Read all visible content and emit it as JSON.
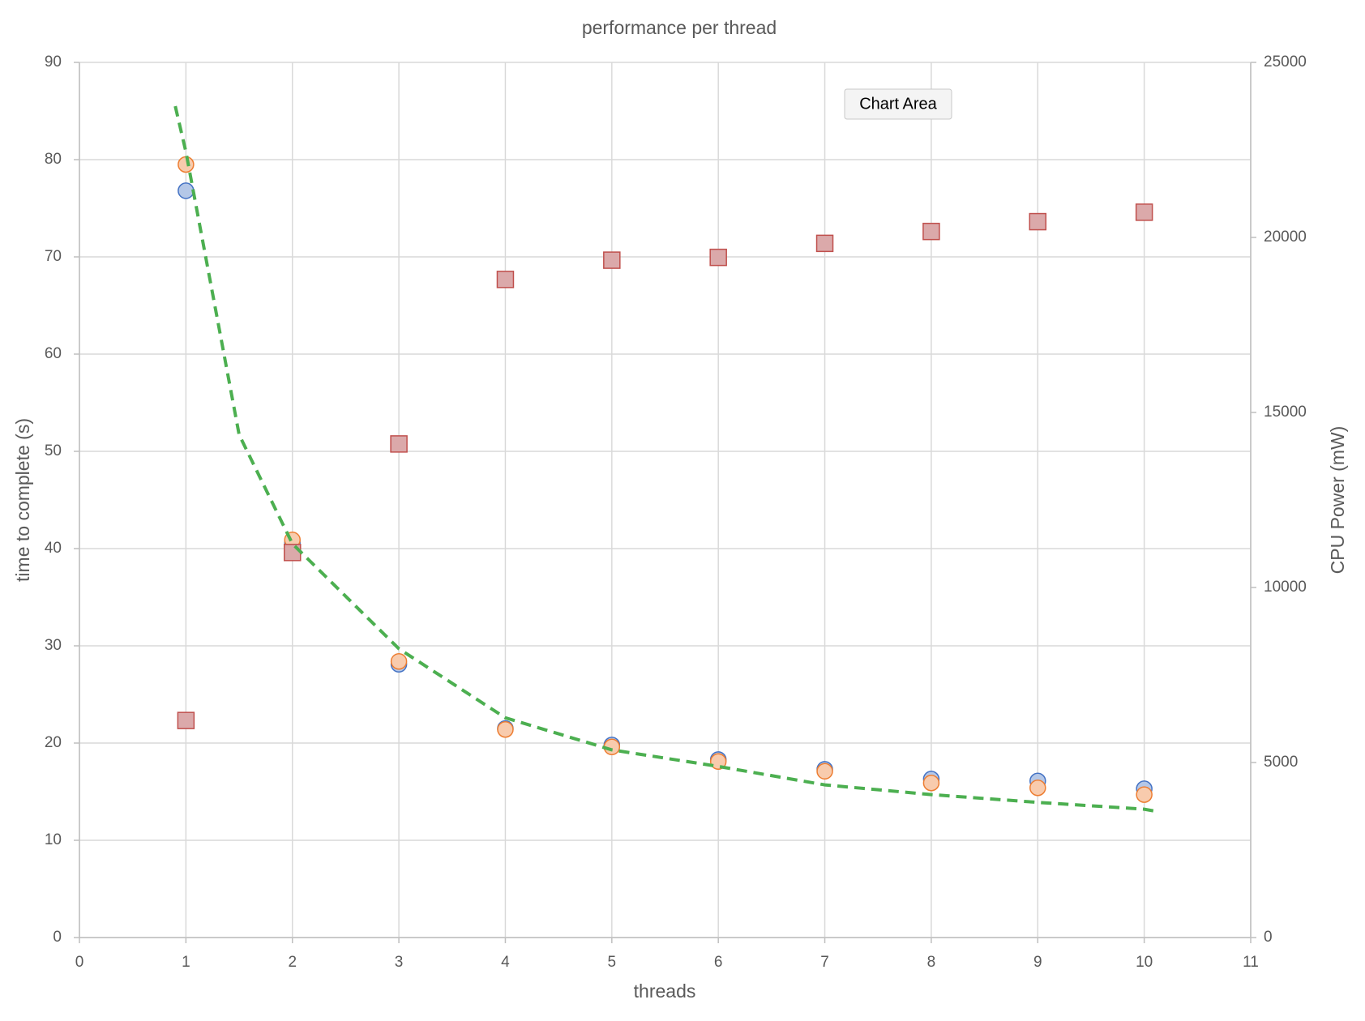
{
  "chart_data": {
    "type": "scatter",
    "title": "performance per thread",
    "x_label": "threads",
    "y_label": "time to complete (s)",
    "y2_label": "CPU Power (mW)",
    "tooltip": "Chart Area",
    "grid": true,
    "xlim": [
      0,
      11
    ],
    "xticks": [
      0,
      1,
      2,
      3,
      4,
      5,
      6,
      7,
      8,
      9,
      10,
      11
    ],
    "ylim": [
      0,
      90
    ],
    "yticks": [
      0,
      10,
      20,
      30,
      40,
      50,
      60,
      70,
      80,
      90
    ],
    "y2lim": [
      0,
      25000
    ],
    "y2ticks": [
      0,
      5000,
      10000,
      15000,
      20000,
      25000
    ],
    "x": [
      1,
      2,
      3,
      4,
      5,
      6,
      7,
      8,
      9,
      10
    ],
    "series": [
      {
        "marker": "circle",
        "color": "#4472c4",
        "fill": "#b4c7e7",
        "values": [
          76.8,
          40.6,
          28.1,
          21.5,
          19.8,
          18.3,
          17.3,
          16.3,
          16.1,
          15.3
        ]
      },
      {
        "marker": "circle",
        "color": "#ed7d31",
        "fill": "#f8cbad",
        "values": [
          79.5,
          40.9,
          28.4,
          21.4,
          19.6,
          18.1,
          17.1,
          15.9,
          15.4,
          14.7
        ]
      },
      {
        "marker": "square",
        "color": "#c0504d",
        "fill": "#dba9aa",
        "axis": "y2",
        "values": [
          6200,
          11000,
          14100,
          18800,
          19350,
          19430,
          19830,
          20170,
          20450,
          20720
        ]
      }
    ],
    "trendline": {
      "color": "#4caf50",
      "style": "dashed",
      "x": [
        0.9,
        1,
        1.5,
        2,
        3,
        4,
        5,
        6,
        7,
        8,
        9,
        10,
        10.1
      ],
      "values": [
        85.5,
        80.8,
        51.7,
        40.5,
        29.7,
        22.6,
        19.3,
        17.6,
        15.7,
        14.7,
        13.9,
        13.2,
        13.0
      ]
    }
  }
}
